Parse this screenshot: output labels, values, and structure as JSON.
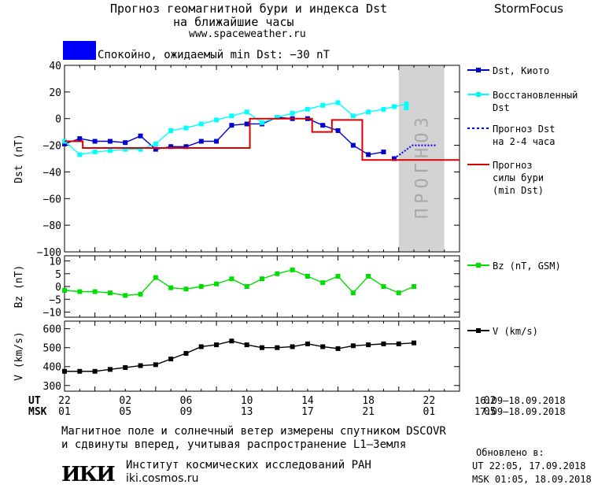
{
  "header": {
    "title_line1": "Прогноз геомагнитной бури и индекса Dst",
    "title_line2": "на ближайшие часы",
    "url": "www.spaceweather.ru",
    "brand": "StormFocus"
  },
  "status": {
    "text": "Спокойно, ожидаемый min Dst: −30 nT",
    "color": "#0000ff"
  },
  "colors": {
    "dst_kyoto": "#0000cc",
    "restored": "#00ffff",
    "forecast_dst": "#0000ff",
    "storm_forecast": "#dd0000",
    "bz": "#00dd00",
    "v": "#000000",
    "forecast_band": "#d3d3d3"
  },
  "chart_data": [
    {
      "type": "line",
      "panel": "dst",
      "ylabel": "Dst (nT)",
      "ylim": [
        -100,
        40
      ],
      "yticks": [
        40,
        20,
        0,
        -20,
        -40,
        -60,
        -80,
        -100
      ],
      "xlim": [
        22,
        46
      ],
      "forecast_band": {
        "x": [
          44,
          47
        ],
        "label": "ПРОГНОЗ"
      },
      "series": [
        {
          "name": "Dst, Киото",
          "marker": "square",
          "x": [
            22,
            23,
            24,
            25,
            26,
            27,
            28,
            29,
            30,
            31,
            32,
            33,
            34,
            35,
            36,
            37,
            38,
            39,
            40,
            41,
            42,
            43
          ],
          "y": [
            -19,
            -15,
            -17,
            -17,
            -18,
            -13,
            -23,
            -21,
            -21,
            -17,
            -17,
            -5,
            -4,
            -4,
            1,
            0,
            0,
            -5,
            -9,
            -20,
            -27,
            -25
          ]
        },
        {
          "name": "",
          "marker": "square",
          "x": [
            43.7
          ],
          "y": [
            -30
          ]
        },
        {
          "name": "Восстановленный Dst",
          "marker": "square",
          "x": [
            22,
            23,
            24,
            25,
            26,
            27,
            28,
            29,
            30,
            31,
            32,
            33,
            34,
            35,
            36,
            37,
            38,
            39,
            40,
            41,
            42,
            43,
            43.7,
            44.5
          ],
          "y": [
            -17,
            -27,
            -25,
            -24,
            -23,
            -23,
            -19,
            -9,
            -7,
            -4,
            -1,
            2,
            5,
            -3,
            1,
            4,
            7,
            10,
            12,
            2,
            5,
            7,
            9,
            11
          ]
        },
        {
          "name": "",
          "marker": "square",
          "x": [
            44.5
          ],
          "y": [
            8
          ]
        },
        {
          "name": "Прогноз Dst на 2-4 часа",
          "marker": "none",
          "dash": "dotted",
          "x": [
            43.7,
            44.9,
            45.2,
            46.5
          ],
          "y": [
            -30,
            -20,
            -20,
            -20
          ]
        },
        {
          "name": "Прогноз силы бури (min Dst)",
          "marker": "none",
          "step": true,
          "x": [
            22,
            23.2,
            23.2,
            34.2,
            34.2,
            38.3,
            38.3,
            39.6,
            39.6,
            41.6,
            41.6,
            48
          ],
          "y": [
            -17,
            -17,
            -22,
            -22,
            0,
            0,
            -10,
            -10,
            -1,
            -1,
            -31,
            -31
          ]
        }
      ]
    },
    {
      "type": "line",
      "panel": "bz",
      "ylabel": "Bz (nT)",
      "ylim": [
        -12,
        12
      ],
      "yticks": [
        10,
        5,
        0,
        -5,
        -10
      ],
      "series": [
        {
          "name": "Bz (nT, GSM)",
          "marker": "square",
          "x": [
            22,
            23,
            24,
            25,
            26,
            27,
            28,
            29,
            30,
            31,
            32,
            33,
            34,
            35,
            36,
            37,
            38,
            39,
            40,
            41,
            42,
            43,
            44,
            45
          ],
          "y": [
            -1.5,
            -2,
            -2,
            -2.5,
            -3.5,
            -3,
            3.5,
            -0.5,
            -1,
            0,
            1,
            3,
            0,
            3,
            5,
            6.5,
            4,
            1.5,
            4,
            -2.5,
            4,
            0,
            -2.5,
            0
          ]
        }
      ]
    },
    {
      "type": "line",
      "panel": "v",
      "ylabel": "V (km/s)",
      "ylim": [
        270,
        640
      ],
      "yticks": [
        600,
        500,
        400,
        300
      ],
      "series": [
        {
          "name": "V (km/s)",
          "marker": "square",
          "x": [
            22,
            23,
            24,
            25,
            26,
            27,
            28,
            29,
            30,
            31,
            32,
            33,
            34,
            35,
            36,
            37,
            38,
            39,
            40,
            41,
            42,
            43,
            44,
            45
          ],
          "y": [
            375,
            375,
            375,
            385,
            395,
            405,
            410,
            440,
            470,
            505,
            515,
            535,
            515,
            500,
            500,
            505,
            520,
            505,
            495,
            510,
            515,
            520,
            520,
            525
          ]
        }
      ]
    }
  ],
  "axis": {
    "ut_label": "UT",
    "msk_label": "MSK",
    "ut_ticks": [
      "22",
      "02",
      "06",
      "10",
      "14",
      "18",
      "22",
      "02"
    ],
    "msk_ticks": [
      "01",
      "05",
      "09",
      "13",
      "17",
      "21",
      "01",
      "05"
    ],
    "ut_range": "16.09–18.09.2018",
    "msk_range": "17.09–18.09.2018"
  },
  "footer": {
    "line1": "Магнитное поле и солнечный ветер измерены спутником DSCOVR",
    "line2": "и сдвинуты вперед, учитывая распространение L1–Земля",
    "logo": "ИКИ",
    "institute": "Институт космических исследований РАН",
    "institute_url": "iki.cosmos.ru",
    "updated_label": "Обновлено в:",
    "updated_ut": "UT   22:05, 17.09.2018",
    "updated_msk": "MSK 01:05, 18.09.2018"
  }
}
